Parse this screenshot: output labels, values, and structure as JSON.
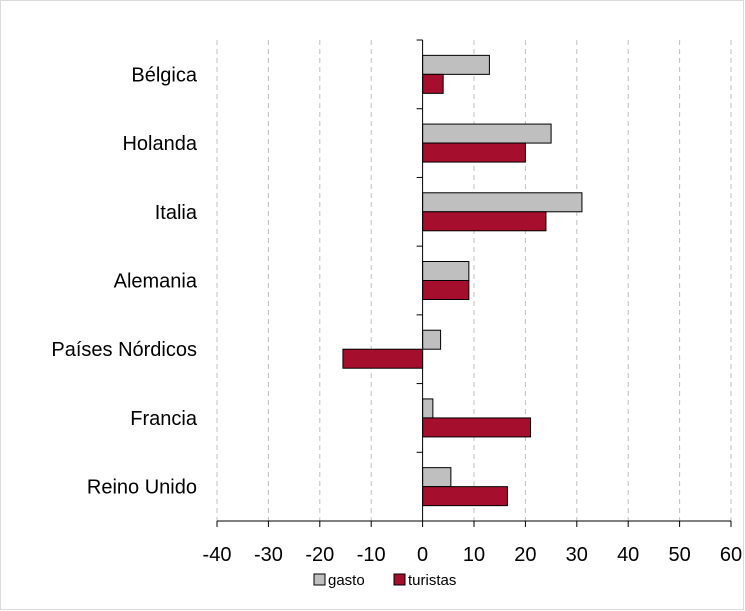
{
  "chart_data": {
    "type": "bar",
    "orientation": "horizontal",
    "categories": [
      "Bélgica",
      "Holanda",
      "Italia",
      "Alemania",
      "Países Nórdicos",
      "Francia",
      "Reino Unido"
    ],
    "series": [
      {
        "name": "gasto",
        "values": [
          13,
          25,
          31,
          9,
          3.5,
          2,
          5.5
        ],
        "color": "#bfbfbf"
      },
      {
        "name": "turistas",
        "values": [
          4,
          20,
          24,
          9,
          -15.5,
          21,
          16.5
        ],
        "color": "#a50f2d"
      }
    ],
    "xlim": [
      -40,
      60
    ],
    "xticks": [
      "-40",
      "-30",
      "-20",
      "-10",
      "0",
      "10",
      "20",
      "30",
      "40",
      "50",
      "60"
    ],
    "grid": "vertical dashed",
    "legend": "bottom"
  }
}
